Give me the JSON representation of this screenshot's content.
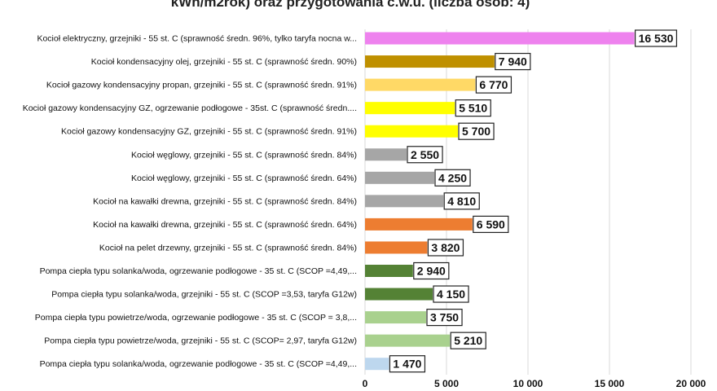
{
  "chart_data": {
    "type": "bar",
    "orientation": "horizontal",
    "title": "kWh/m2rok) oraz przygotowania  c.w.u. (liczba osób: 4)",
    "xlim": [
      0,
      20000
    ],
    "x_ticks": [
      {
        "value": 0,
        "label": "0"
      },
      {
        "value": 5000,
        "label": "5 000"
      },
      {
        "value": 10000,
        "label": "10 000"
      },
      {
        "value": 15000,
        "label": "15 000"
      },
      {
        "value": 20000,
        "label": "20 000"
      }
    ],
    "grid": true,
    "bars": [
      {
        "label": "Kocioł  elektryczny,  grzejniki - 55 st. C  (sprawność średn. 96%, tylko taryfa nocna w...",
        "value": 16530,
        "value_label": "16 530",
        "color": "#ee82ee"
      },
      {
        "label": "Kocioł  kondensacyjny olej,  grzejniki - 55 st. C  (sprawność średn. 90%)",
        "value": 7940,
        "value_label": "7 940",
        "color": "#bf9000"
      },
      {
        "label": "Kocioł gazowy kondensacyjny propan, grzejniki - 55 st. C  (sprawność średn. 91%)",
        "value": 6770,
        "value_label": "6 770",
        "color": "#ffd966"
      },
      {
        "label": "Kocioł gazowy kondensacyjny GZ, ogrzewanie podłogowe - 35st. C  (sprawność średn....",
        "value": 5510,
        "value_label": "5 510",
        "color": "#ffff00"
      },
      {
        "label": "Kocioł gazowy kondensacyjny GZ, grzejniki - 55 st. C  (sprawność średn. 91%)",
        "value": 5700,
        "value_label": "5 700",
        "color": "#ffff00"
      },
      {
        "label": "Kocioł węglowy,  grzejniki - 55 st. C  (sprawność średn. 84%)",
        "value": 2550,
        "value_label": "2 550",
        "color": "#a6a6a6"
      },
      {
        "label": "Kocioł węglowy,  grzejniki - 55 st. C  (sprawność średn. 64%)",
        "value": 4250,
        "value_label": "4 250",
        "color": "#a6a6a6"
      },
      {
        "label": "Kocioł na kawałki drewna, grzejniki - 55 st. C (sprawność średn. 84%)",
        "value": 4810,
        "value_label": "4 810",
        "color": "#a6a6a6"
      },
      {
        "label": "Kocioł na kawałki drewna, grzejniki - 55 st. C  (sprawność średn. 64%)",
        "value": 6590,
        "value_label": "6 590",
        "color": "#ed7d31"
      },
      {
        "label": "Kocioł na pelet drzewny, grzejniki - 55 st. C (sprawność średn. 84%)",
        "value": 3820,
        "value_label": "3 820",
        "color": "#ed7d31"
      },
      {
        "label": "Pompa ciepła typu solanka/woda, ogrzewanie podłogowe - 35 st. C  (SCOP =4,49,...",
        "value": 2940,
        "value_label": "2 940",
        "color": "#548235"
      },
      {
        "label": "Pompa ciepła typu solanka/woda, grzejniki - 55 st. C (SCOP =3,53, taryfa G12w)",
        "value": 4150,
        "value_label": "4 150",
        "color": "#548235"
      },
      {
        "label": "Pompa ciepła typu powietrze/woda, ogrzewanie podłogowe - 35 st. C (SCOP = 3,8,...",
        "value": 3750,
        "value_label": "3 750",
        "color": "#a9d18e"
      },
      {
        "label": "Pompa ciepła typu powietrze/woda, grzejniki - 55 st. C (SCOP= 2,97, taryfa G12w)",
        "value": 5210,
        "value_label": "5 210",
        "color": "#a9d18e"
      },
      {
        "label": "Pompa ciepła typu solanka/woda, ogrzewanie podłogowe - 35 st. C  (SCOP =4,49,...",
        "value": 1470,
        "value_label": "1 470",
        "color": "#bdd7ee"
      }
    ]
  }
}
